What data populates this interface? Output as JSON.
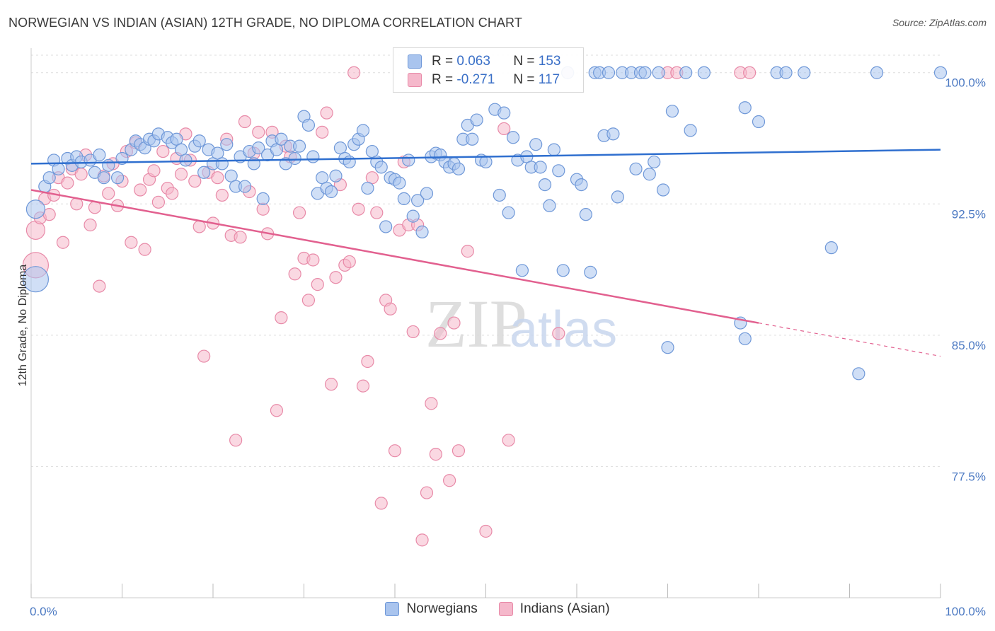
{
  "title": "NORWEGIAN VS INDIAN (ASIAN) 12TH GRADE, NO DIPLOMA CORRELATION CHART",
  "source": "Source: ZipAtlas.com",
  "colors": {
    "blue_fill": "#a9c4ee",
    "blue_stroke": "#6f98d8",
    "blue_line": "#2f6fcf",
    "pink_fill": "#f5b8cb",
    "pink_stroke": "#e88aa8",
    "pink_line": "#e2608f",
    "tick_text": "#4a78c2",
    "grid": "#dddddd"
  },
  "legend": {
    "r1_label": "R =",
    "r1_value": "0.063",
    "n1_label": "N =",
    "n1_value": "153",
    "r2_label": "R =",
    "r2_value": "-0.271",
    "n2_label": "N =",
    "n2_value": "117"
  },
  "bottom_legend": {
    "series1": "Norwegians",
    "series2": "Indians (Asian)"
  },
  "watermark": {
    "part1": "ZIP",
    "part2": "atlas"
  },
  "chart_data": {
    "type": "scatter",
    "title": "NORWEGIAN VS INDIAN (ASIAN) 12TH GRADE, NO DIPLOMA CORRELATION CHART",
    "xlabel": "",
    "ylabel": "12th Grade, No Diploma",
    "xlim": [
      0,
      100
    ],
    "ylim": [
      70.0,
      101.0
    ],
    "x_tick_labels": [
      "0.0%",
      "100.0%"
    ],
    "y_ticks": [
      77.5,
      85.0,
      92.5,
      100.0
    ],
    "y_tick_labels": [
      "77.5%",
      "85.0%",
      "92.5%",
      "100.0%"
    ],
    "grid": true,
    "legend_position": "top-center",
    "series": [
      {
        "name": "Norwegians",
        "r": 0.063,
        "n": 153,
        "trend": {
          "x": [
            0,
            100
          ],
          "y": [
            94.8,
            95.6
          ]
        },
        "points": [
          [
            0.5,
            92.2
          ],
          [
            0.5,
            88.2
          ],
          [
            1.5,
            93.5
          ],
          [
            2,
            94
          ],
          [
            2.5,
            95
          ],
          [
            3,
            94.5
          ],
          [
            4,
            95.1
          ],
          [
            4.5,
            94.7
          ],
          [
            5,
            95.2
          ],
          [
            5.5,
            94.9
          ],
          [
            6.5,
            95
          ],
          [
            7,
            94.3
          ],
          [
            7.5,
            95.3
          ],
          [
            8,
            94
          ],
          [
            8.5,
            94.7
          ],
          [
            9.5,
            94
          ],
          [
            10,
            95.1
          ],
          [
            11,
            95.6
          ],
          [
            11.5,
            96.1
          ],
          [
            12,
            95.9
          ],
          [
            12.5,
            95.7
          ],
          [
            13,
            96.2
          ],
          [
            13.5,
            96.1
          ],
          [
            14,
            96.5
          ],
          [
            15,
            96.3
          ],
          [
            15.5,
            96
          ],
          [
            16,
            96.2
          ],
          [
            16.5,
            95.6
          ],
          [
            17,
            95
          ],
          [
            18,
            95.8
          ],
          [
            18.5,
            96.1
          ],
          [
            19,
            94.3
          ],
          [
            19.5,
            95.6
          ],
          [
            20,
            94.8
          ],
          [
            20.5,
            95.4
          ],
          [
            21,
            94.8
          ],
          [
            21.5,
            95.9
          ],
          [
            22,
            94.1
          ],
          [
            22.5,
            93.5
          ],
          [
            23,
            95.2
          ],
          [
            23.5,
            93.5
          ],
          [
            24,
            95.5
          ],
          [
            24.5,
            94.8
          ],
          [
            25,
            95.7
          ],
          [
            25.5,
            92.8
          ],
          [
            26,
            95.3
          ],
          [
            26.5,
            96.1
          ],
          [
            27,
            95.6
          ],
          [
            27.5,
            96.2
          ],
          [
            28,
            94.8
          ],
          [
            28.5,
            95.8
          ],
          [
            29,
            95.1
          ],
          [
            29.5,
            95.8
          ],
          [
            30,
            97.5
          ],
          [
            30.5,
            97
          ],
          [
            31,
            95.2
          ],
          [
            31.5,
            93.1
          ],
          [
            32,
            94
          ],
          [
            32.5,
            93.4
          ],
          [
            33,
            93.2
          ],
          [
            33.5,
            94.1
          ],
          [
            34,
            95.7
          ],
          [
            34.5,
            95.1
          ],
          [
            35,
            94.9
          ],
          [
            35.5,
            95.9
          ],
          [
            36,
            96.2
          ],
          [
            36.5,
            96.7
          ],
          [
            37,
            93.4
          ],
          [
            37.5,
            95.5
          ],
          [
            38,
            94.9
          ],
          [
            38.5,
            94.6
          ],
          [
            39,
            91.2
          ],
          [
            39.5,
            94
          ],
          [
            40,
            93.9
          ],
          [
            40.5,
            93.7
          ],
          [
            41,
            92.8
          ],
          [
            41.5,
            95
          ],
          [
            42,
            91.8
          ],
          [
            42.5,
            92.7
          ],
          [
            43,
            90.9
          ],
          [
            43.5,
            93.1
          ],
          [
            44,
            95.2
          ],
          [
            44.5,
            95.4
          ],
          [
            45,
            95.3
          ],
          [
            45.5,
            94.9
          ],
          [
            46,
            94.6
          ],
          [
            46.5,
            94.8
          ],
          [
            47,
            94.5
          ],
          [
            47.5,
            96.2
          ],
          [
            48,
            97
          ],
          [
            48.5,
            96.2
          ],
          [
            49,
            97.3
          ],
          [
            49.5,
            95
          ],
          [
            50,
            94.9
          ],
          [
            51,
            97.9
          ],
          [
            51.5,
            93
          ],
          [
            52,
            97.7
          ],
          [
            52.5,
            92
          ],
          [
            53,
            96.3
          ],
          [
            53.5,
            95
          ],
          [
            54,
            88.7
          ],
          [
            54.5,
            95.2
          ],
          [
            55,
            94.6
          ],
          [
            55.5,
            95.9
          ],
          [
            56,
            94.6
          ],
          [
            56.5,
            93.6
          ],
          [
            57,
            92.4
          ],
          [
            57.5,
            95.6
          ],
          [
            58,
            94.4
          ],
          [
            58.5,
            88.7
          ],
          [
            59,
            100
          ],
          [
            60,
            93.9
          ],
          [
            60.5,
            93.6
          ],
          [
            61,
            91.9
          ],
          [
            61.5,
            88.6
          ],
          [
            62,
            100
          ],
          [
            62.5,
            100
          ],
          [
            63,
            96.4
          ],
          [
            63.5,
            100
          ],
          [
            64,
            96.5
          ],
          [
            64.5,
            92.9
          ],
          [
            65,
            100
          ],
          [
            66,
            100
          ],
          [
            66.5,
            94.5
          ],
          [
            67,
            100
          ],
          [
            67.5,
            100
          ],
          [
            68,
            94.2
          ],
          [
            68.5,
            94.9
          ],
          [
            69,
            100
          ],
          [
            69.5,
            93.3
          ],
          [
            70,
            84.3
          ],
          [
            70.5,
            97.8
          ],
          [
            72,
            100
          ],
          [
            72.5,
            96.7
          ],
          [
            74,
            100
          ],
          [
            78,
            85.7
          ],
          [
            78.5,
            84.8
          ],
          [
            78.5,
            98
          ],
          [
            80,
            97.2
          ],
          [
            82,
            100
          ],
          [
            83,
            100
          ],
          [
            85,
            100
          ],
          [
            88,
            90
          ],
          [
            91,
            82.8
          ],
          [
            93,
            100
          ],
          [
            100,
            100
          ]
        ]
      },
      {
        "name": "Indians (Asian)",
        "r": -0.271,
        "n": 117,
        "trend": {
          "x": [
            0,
            80
          ],
          "y": [
            93.3,
            85.7
          ]
        },
        "trend_dashed": {
          "x": [
            80,
            100
          ],
          "y": [
            85.7,
            83.8
          ]
        },
        "points": [
          [
            0.5,
            91
          ],
          [
            0.5,
            89
          ],
          [
            1,
            91.7
          ],
          [
            1.5,
            92.8
          ],
          [
            2,
            91.9
          ],
          [
            2.5,
            93
          ],
          [
            3,
            94
          ],
          [
            3.5,
            90.3
          ],
          [
            4,
            93.7
          ],
          [
            4.5,
            94.5
          ],
          [
            5,
            92.5
          ],
          [
            5.5,
            94.2
          ],
          [
            6,
            95.3
          ],
          [
            6.5,
            91.3
          ],
          [
            7,
            92.3
          ],
          [
            7.5,
            87.8
          ],
          [
            8,
            94.1
          ],
          [
            8.5,
            93.1
          ],
          [
            9,
            94.8
          ],
          [
            9.5,
            92.4
          ],
          [
            10,
            93.8
          ],
          [
            10.5,
            95.5
          ],
          [
            11,
            90.3
          ],
          [
            11.5,
            96
          ],
          [
            12,
            93.3
          ],
          [
            12.5,
            89.9
          ],
          [
            13,
            93.9
          ],
          [
            13.5,
            94.4
          ],
          [
            14,
            92.6
          ],
          [
            14.5,
            95.5
          ],
          [
            15,
            93.4
          ],
          [
            15.5,
            93.1
          ],
          [
            16,
            95.1
          ],
          [
            16.5,
            94.2
          ],
          [
            17,
            96.5
          ],
          [
            17.5,
            95
          ],
          [
            18,
            93.8
          ],
          [
            18.5,
            91.2
          ],
          [
            19,
            83.8
          ],
          [
            19.5,
            94.3
          ],
          [
            20,
            91.4
          ],
          [
            20.5,
            94
          ],
          [
            21,
            93
          ],
          [
            21.5,
            96.2
          ],
          [
            22,
            90.7
          ],
          [
            22.5,
            79
          ],
          [
            23,
            90.6
          ],
          [
            23.5,
            97.2
          ],
          [
            24,
            93.2
          ],
          [
            24.5,
            95.4
          ],
          [
            25,
            96.6
          ],
          [
            25.5,
            92.2
          ],
          [
            26,
            90.8
          ],
          [
            26.5,
            96.6
          ],
          [
            27,
            80.7
          ],
          [
            27.5,
            86
          ],
          [
            28,
            95.8
          ],
          [
            28.5,
            95.2
          ],
          [
            29,
            88.5
          ],
          [
            29.5,
            92
          ],
          [
            30,
            89.4
          ],
          [
            30.5,
            87
          ],
          [
            31,
            89.3
          ],
          [
            31.5,
            87.9
          ],
          [
            32,
            96.6
          ],
          [
            32.5,
            97.7
          ],
          [
            33,
            82.2
          ],
          [
            33.5,
            88.3
          ],
          [
            34,
            93.6
          ],
          [
            34.5,
            89
          ],
          [
            35,
            89.2
          ],
          [
            35.5,
            100
          ],
          [
            36,
            92.2
          ],
          [
            36.5,
            82.1
          ],
          [
            37,
            83.5
          ],
          [
            37.5,
            94
          ],
          [
            38,
            92
          ],
          [
            38.5,
            75.4
          ],
          [
            39,
            87
          ],
          [
            39.5,
            86.5
          ],
          [
            40,
            78.4
          ],
          [
            40.5,
            91
          ],
          [
            41,
            94.9
          ],
          [
            41.5,
            91.3
          ],
          [
            42,
            85.2
          ],
          [
            42.5,
            91.3
          ],
          [
            43,
            73.3
          ],
          [
            43.5,
            76
          ],
          [
            44,
            81.1
          ],
          [
            44.5,
            78.2
          ],
          [
            45,
            85.1
          ],
          [
            46,
            76.7
          ],
          [
            46.5,
            85.7
          ],
          [
            47,
            78.4
          ],
          [
            48,
            89.8
          ],
          [
            49,
            100
          ],
          [
            50,
            73.8
          ],
          [
            52,
            96.8
          ],
          [
            52.5,
            79
          ],
          [
            58,
            85.1
          ],
          [
            59,
            100
          ],
          [
            70,
            100
          ],
          [
            71,
            100
          ],
          [
            78,
            100
          ],
          [
            79,
            100
          ]
        ]
      }
    ]
  }
}
